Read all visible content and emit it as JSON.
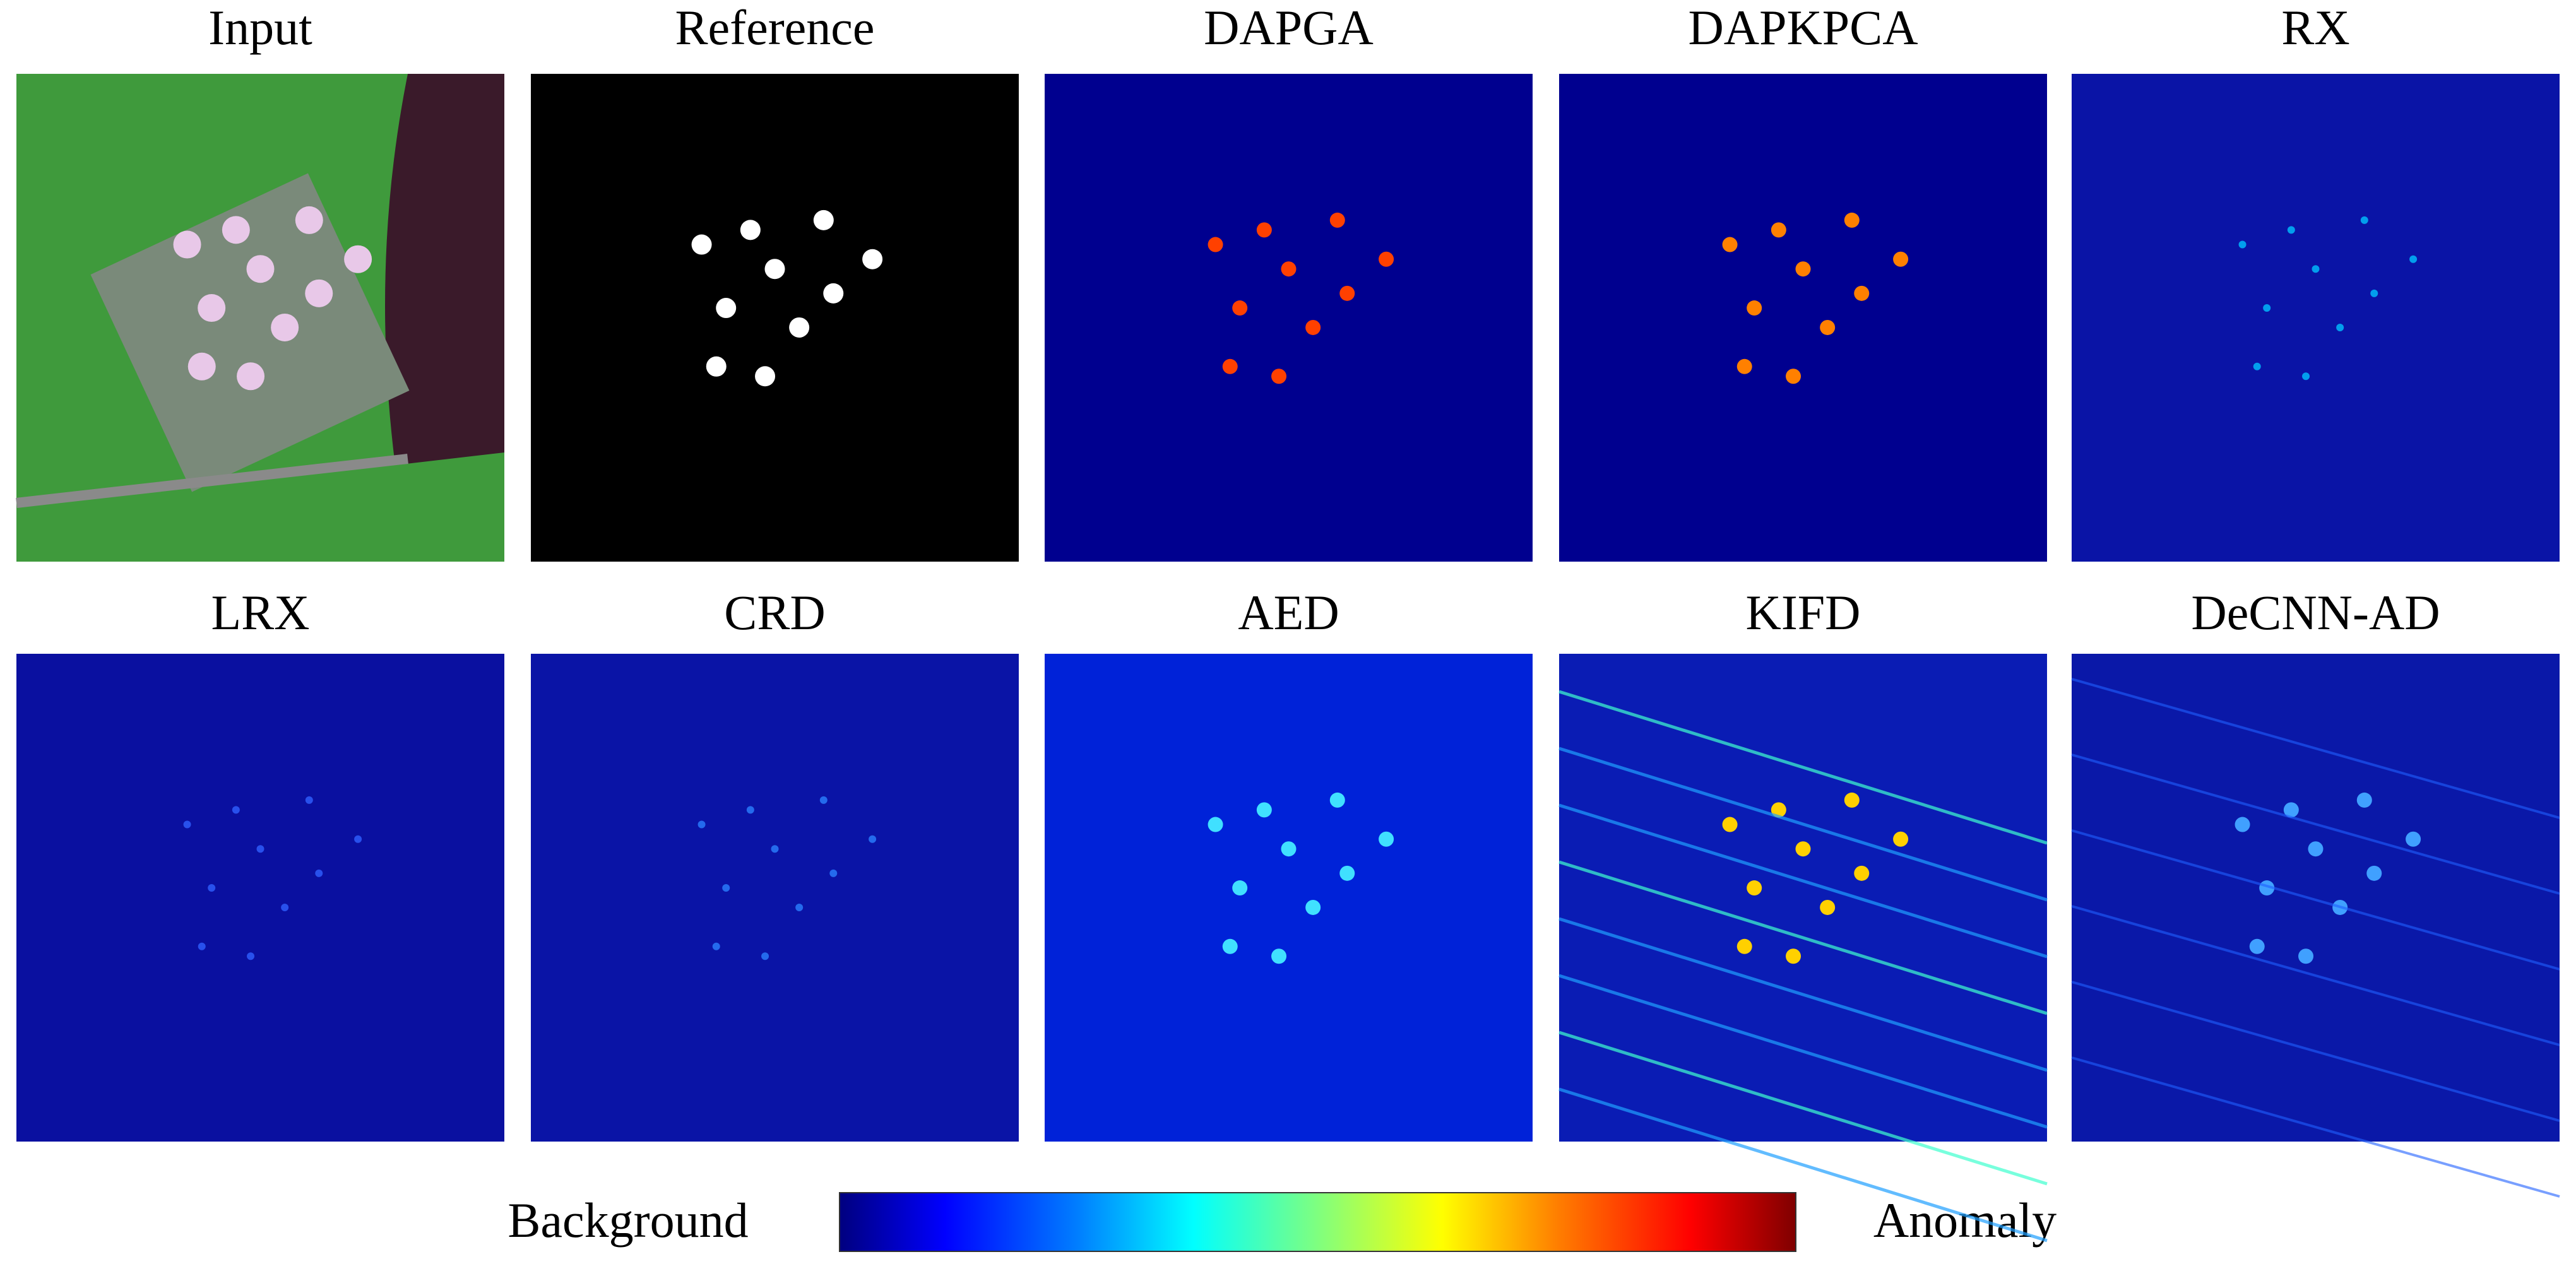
{
  "panels": [
    {
      "title": "Input"
    },
    {
      "title": "Reference"
    },
    {
      "title": "DAPGA"
    },
    {
      "title": "DAPKPCA"
    },
    {
      "title": "RX"
    },
    {
      "title": "LRX"
    },
    {
      "title": "CRD"
    },
    {
      "title": "AED"
    },
    {
      "title": "KIFD"
    },
    {
      "title": "DeCNN-AD"
    }
  ],
  "colorbar": {
    "low_label": "Background",
    "high_label": "Anomaly"
  }
}
